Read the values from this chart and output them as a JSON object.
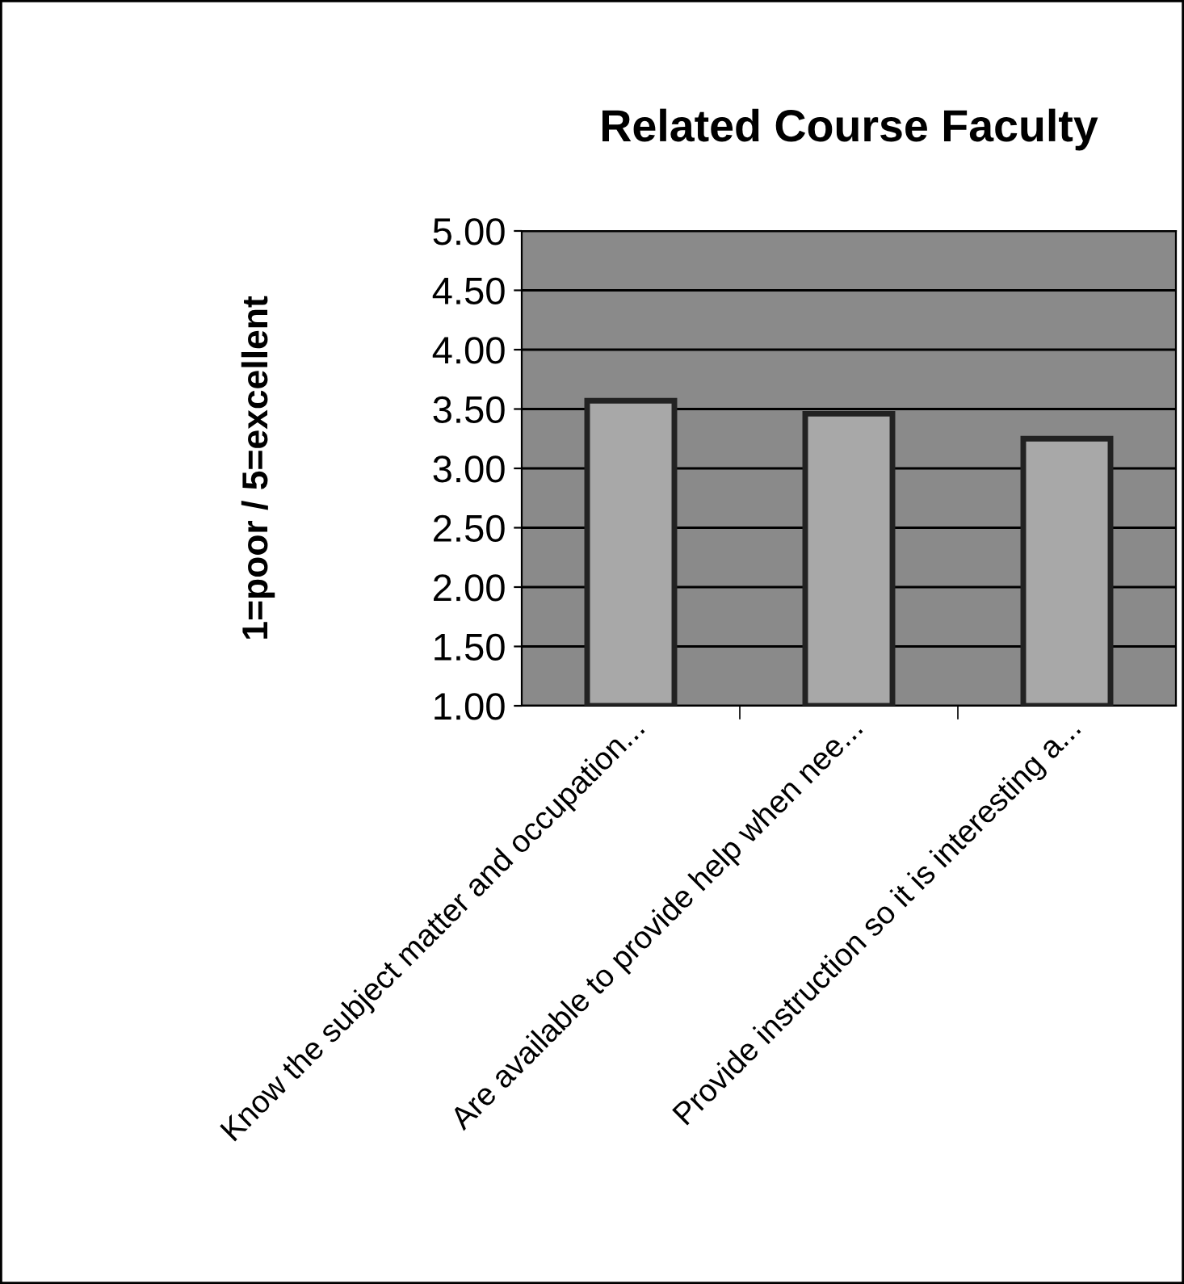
{
  "chart_data": {
    "type": "bar",
    "title": "Related Course Faculty",
    "ylabel": "1=poor / 5=excellent",
    "categories": [
      "Know the subject matter and occupation...",
      "Are available to provide help when nee...",
      "Provide instruction so it is interesting a..."
    ],
    "values": [
      3.57,
      3.46,
      3.25
    ],
    "color": "#a8a8a8",
    "ylim": [
      1,
      5
    ],
    "yticks": [
      {
        "value": 1,
        "label": "1.00"
      },
      {
        "value": 1.5,
        "label": "1.50"
      },
      {
        "value": 2,
        "label": "2.00"
      },
      {
        "value": 2.5,
        "label": "2.50"
      },
      {
        "value": 3,
        "label": "3.00"
      },
      {
        "value": 3.5,
        "label": "3.50"
      },
      {
        "value": 4,
        "label": "4.00"
      },
      {
        "value": 4.5,
        "label": "4.50"
      },
      {
        "value": 5,
        "label": "5.00"
      }
    ],
    "grid": "y"
  }
}
